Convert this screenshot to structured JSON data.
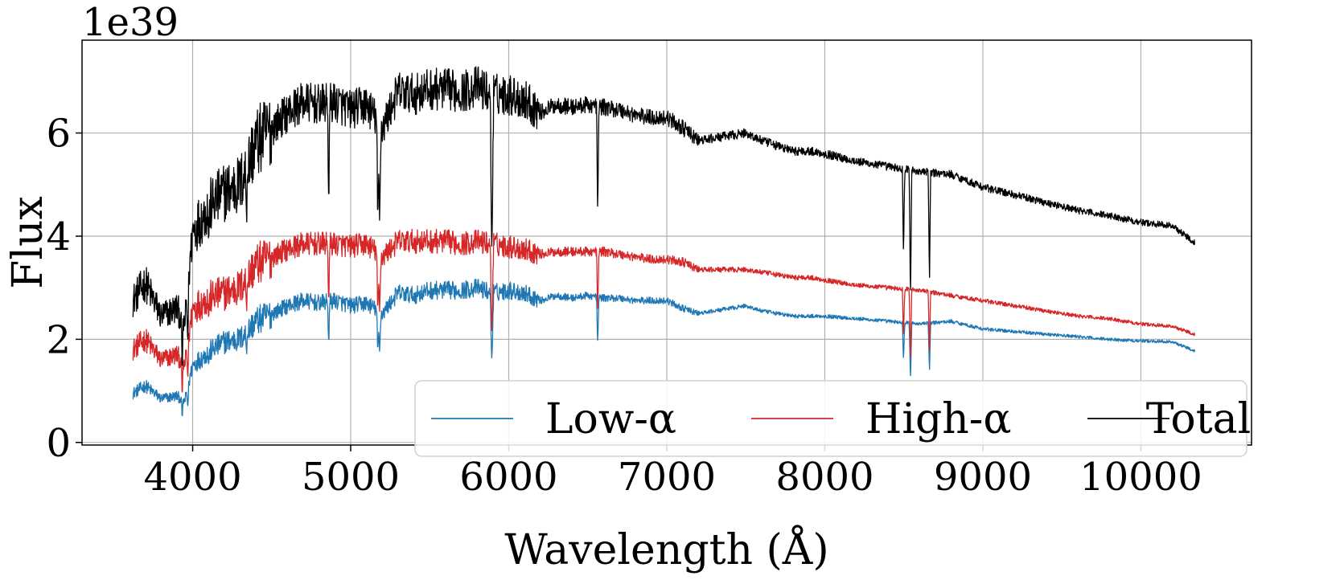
{
  "chart_data": {
    "type": "line",
    "title": "",
    "xlabel": "Wavelength (Å)",
    "ylabel": "Flux",
    "y_offset_label": "1e39",
    "xlim": [
      3300,
      10700
    ],
    "ylim": [
      -0.05,
      7.8
    ],
    "grid": true,
    "legend_position": "lower-right",
    "legend_columns": 3,
    "x_ticks": [
      {
        "value": 4000,
        "label": "4000"
      },
      {
        "value": 5000,
        "label": "5000"
      },
      {
        "value": 6000,
        "label": "6000"
      },
      {
        "value": 7000,
        "label": "7000"
      },
      {
        "value": 8000,
        "label": "8000"
      },
      {
        "value": 9000,
        "label": "9000"
      },
      {
        "value": 10000,
        "label": "10000"
      }
    ],
    "y_ticks": [
      {
        "value": 0,
        "label": "0"
      },
      {
        "value": 2,
        "label": "2"
      },
      {
        "value": 4,
        "label": "4"
      },
      {
        "value": 6,
        "label": "6"
      }
    ],
    "absorption_lines": [
      {
        "x": 3934,
        "depth": 0.35
      },
      {
        "x": 3969,
        "depth": 0.32
      },
      {
        "x": 4102,
        "depth": 0.1
      },
      {
        "x": 4340,
        "depth": 0.12
      },
      {
        "x": 4861,
        "depth": 0.25
      },
      {
        "x": 5172,
        "depth": 0.32
      },
      {
        "x": 5183,
        "depth": 0.3
      },
      {
        "x": 5890,
        "depth": 0.3
      },
      {
        "x": 5896,
        "depth": 0.28
      },
      {
        "x": 6563,
        "depth": 0.3
      },
      {
        "x": 8498,
        "depth": 0.3
      },
      {
        "x": 8542,
        "depth": 0.45
      },
      {
        "x": 8662,
        "depth": 0.38
      }
    ],
    "series": [
      {
        "name": "Low-α",
        "color": "#1f77b4",
        "x": [
          3620,
          3700,
          3800,
          3900,
          3950,
          4000,
          4100,
          4200,
          4300,
          4400,
          4500,
          4600,
          4700,
          4800,
          4900,
          5000,
          5100,
          5200,
          5300,
          5400,
          5500,
          5600,
          5700,
          5800,
          5900,
          6000,
          6100,
          6200,
          6300,
          6400,
          6500,
          6600,
          6700,
          6800,
          6900,
          7000,
          7100,
          7200,
          7300,
          7400,
          7500,
          7600,
          7700,
          7800,
          7900,
          8000,
          8200,
          8400,
          8600,
          8800,
          9000,
          9200,
          9400,
          9600,
          9800,
          10000,
          10200,
          10340
        ],
        "y": [
          0.95,
          1.1,
          0.85,
          0.9,
          0.8,
          1.5,
          1.75,
          1.95,
          2.0,
          2.35,
          2.5,
          2.65,
          2.75,
          2.7,
          2.75,
          2.65,
          2.7,
          2.5,
          2.9,
          2.85,
          2.95,
          2.95,
          2.95,
          3.0,
          2.9,
          2.95,
          2.9,
          2.75,
          2.85,
          2.8,
          2.85,
          2.8,
          2.8,
          2.75,
          2.75,
          2.75,
          2.6,
          2.5,
          2.55,
          2.6,
          2.65,
          2.55,
          2.5,
          2.45,
          2.45,
          2.45,
          2.4,
          2.35,
          2.3,
          2.35,
          2.2,
          2.15,
          2.1,
          2.05,
          2.0,
          1.97,
          1.95,
          1.78
        ]
      },
      {
        "name": "High-α",
        "color": "#d62728",
        "x": [
          3620,
          3700,
          3800,
          3900,
          3950,
          4000,
          4100,
          4200,
          4300,
          4400,
          4500,
          4600,
          4700,
          4800,
          4900,
          5000,
          5100,
          5200,
          5300,
          5400,
          5500,
          5600,
          5700,
          5800,
          5900,
          6000,
          6100,
          6200,
          6300,
          6400,
          6500,
          6600,
          6700,
          6800,
          6900,
          7000,
          7100,
          7200,
          7300,
          7400,
          7500,
          7600,
          7700,
          7800,
          7900,
          8000,
          8200,
          8400,
          8600,
          8800,
          9000,
          9200,
          9400,
          9600,
          9800,
          10000,
          10200,
          10340
        ],
        "y": [
          1.8,
          2.0,
          1.6,
          1.7,
          1.5,
          2.6,
          2.8,
          2.9,
          3.0,
          3.45,
          3.6,
          3.75,
          3.85,
          3.85,
          3.85,
          3.8,
          3.85,
          3.6,
          3.9,
          3.9,
          3.9,
          3.9,
          3.85,
          3.9,
          3.85,
          3.8,
          3.75,
          3.65,
          3.7,
          3.7,
          3.7,
          3.7,
          3.65,
          3.6,
          3.55,
          3.55,
          3.5,
          3.35,
          3.35,
          3.35,
          3.35,
          3.3,
          3.25,
          3.2,
          3.2,
          3.15,
          3.05,
          3.0,
          2.95,
          2.85,
          2.75,
          2.65,
          2.55,
          2.45,
          2.4,
          2.3,
          2.25,
          2.1
        ]
      },
      {
        "name": "Total",
        "color": "#000000",
        "x": [
          3620,
          3700,
          3800,
          3900,
          3950,
          4000,
          4100,
          4200,
          4300,
          4400,
          4500,
          4600,
          4700,
          4800,
          4900,
          5000,
          5100,
          5200,
          5300,
          5400,
          5500,
          5600,
          5700,
          5800,
          5900,
          6000,
          6100,
          6200,
          6300,
          6400,
          6500,
          6600,
          6700,
          6800,
          6900,
          7000,
          7100,
          7200,
          7300,
          7400,
          7500,
          7600,
          7700,
          7800,
          7900,
          8000,
          8200,
          8400,
          8600,
          8800,
          9000,
          9200,
          9400,
          9600,
          9800,
          10000,
          10200,
          10340
        ],
        "y": [
          2.75,
          3.1,
          2.45,
          2.6,
          2.3,
          4.1,
          4.55,
          4.85,
          5.0,
          5.8,
          6.1,
          6.4,
          6.6,
          6.55,
          6.6,
          6.45,
          6.55,
          6.1,
          6.8,
          6.75,
          6.85,
          6.85,
          6.8,
          6.9,
          6.75,
          6.75,
          6.65,
          6.4,
          6.55,
          6.5,
          6.55,
          6.5,
          6.45,
          6.35,
          6.3,
          6.3,
          6.1,
          5.85,
          5.9,
          5.95,
          6.0,
          5.85,
          5.75,
          5.65,
          5.65,
          5.6,
          5.45,
          5.35,
          5.25,
          5.2,
          4.95,
          4.8,
          4.65,
          4.5,
          4.4,
          4.27,
          4.2,
          3.88
        ]
      }
    ]
  }
}
